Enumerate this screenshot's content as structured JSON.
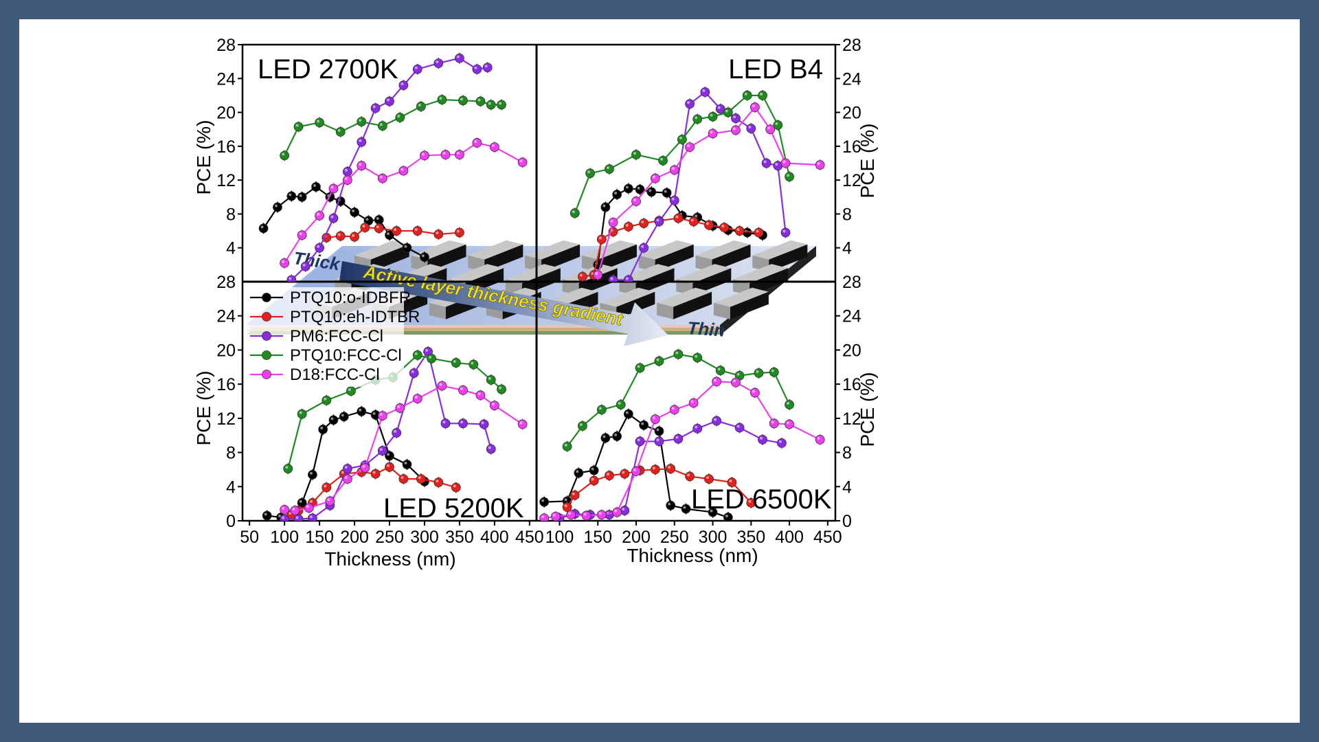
{
  "chart_data": {
    "type": "line",
    "legend": {
      "placement": "top-left of lower-left panel",
      "entries": [
        {
          "label": "PTQ10:o-IDBFR",
          "color": "#000000"
        },
        {
          "label": "PTQ10:eh-IDTBR",
          "color": "#e3201b"
        },
        {
          "label": "PM6:FCC-Cl",
          "color": "#8a2be2"
        },
        {
          "label": "PTQ10:FCC-Cl",
          "color": "#1f8a1f"
        },
        {
          "label": "D18:FCC-Cl",
          "color": "#ef3ef0"
        }
      ]
    },
    "ylabel": "PCE (%)",
    "xlabel": "Thickness (nm)",
    "y_ticks": [
      "0",
      "4",
      "8",
      "12",
      "16",
      "20",
      "24",
      "28"
    ],
    "x_ticks": [
      "50",
      "100",
      "150",
      "200",
      "250",
      "300",
      "350",
      "400",
      "450"
    ],
    "ylim": [
      0,
      28
    ],
    "xlim_left": [
      40,
      460
    ],
    "xlim_right": [
      70,
      460
    ],
    "panels": [
      {
        "id": "tl",
        "title": "LED 2700K",
        "series": [
          {
            "name": "PTQ10:o-IDBFR",
            "x": [
              70,
              90,
              110,
              125,
              145,
              165,
              180,
              200,
              220,
              235,
              250,
              275,
              300
            ],
            "y": [
              6.3,
              8.8,
              10.1,
              10.0,
              11.2,
              10.0,
              9.5,
              8.2,
              7.2,
              7.3,
              5.5,
              4.0,
              2.9
            ]
          },
          {
            "name": "PTQ10:eh-IDTBR",
            "x": [
              160,
              180,
              200,
              215,
              235,
              260,
              290,
              320,
              350
            ],
            "y": [
              5.2,
              5.4,
              5.3,
              6.4,
              6.3,
              6.0,
              6.0,
              5.6,
              5.8
            ]
          },
          {
            "name": "PM6:FCC-Cl",
            "x": [
              110,
              130,
              150,
              170,
              190,
              210,
              230,
              250,
              270,
              290,
              320,
              350,
              375,
              390
            ],
            "y": [
              0.2,
              1.8,
              4.0,
              7.5,
              13.0,
              16.5,
              20.5,
              21.3,
              23.2,
              25.1,
              25.8,
              26.4,
              25.1,
              25.3
            ]
          },
          {
            "name": "PTQ10:FCC-Cl",
            "x": [
              100,
              120,
              150,
              180,
              210,
              240,
              265,
              295,
              325,
              355,
              380,
              395,
              410
            ],
            "y": [
              14.9,
              18.3,
              18.8,
              17.7,
              18.9,
              18.4,
              19.4,
              20.7,
              21.5,
              21.4,
              21.3,
              20.9,
              20.9
            ]
          },
          {
            "name": "D18:FCC-Cl",
            "x": [
              100,
              125,
              150,
              170,
              190,
              210,
              240,
              270,
              300,
              330,
              350,
              375,
              400,
              440
            ],
            "y": [
              2.2,
              5.5,
              7.8,
              11.0,
              12.0,
              13.7,
              12.2,
              13.1,
              14.9,
              15.0,
              15.0,
              16.4,
              15.9,
              14.1
            ]
          }
        ]
      },
      {
        "id": "tr",
        "title": "LED B4",
        "series": [
          {
            "name": "PTQ10:o-IDBFR",
            "x": [
              150,
              160,
              175,
              190,
              205,
              220,
              240,
              260,
              280,
              300,
              320,
              345,
              365
            ],
            "y": [
              2.0,
              8.8,
              10.3,
              11.0,
              10.9,
              10.6,
              10.5,
              7.8,
              7.6,
              6.6,
              6.1,
              5.8,
              5.5
            ]
          },
          {
            "name": "PTQ10:eh-IDTBR",
            "x": [
              130,
              145,
              155,
              170,
              190,
              210,
              230,
              255,
              275,
              295,
              315,
              335,
              360
            ],
            "y": [
              0.6,
              0.8,
              5.0,
              5.9,
              6.5,
              6.9,
              7.2,
              7.5,
              7.1,
              6.7,
              6.4,
              6.0,
              5.8
            ]
          },
          {
            "name": "PM6:FCC-Cl",
            "x": [
              170,
              190,
              210,
              230,
              250,
              270,
              290,
              310,
              330,
              350,
              370,
              385,
              395
            ],
            "y": [
              0.2,
              0.2,
              4.0,
              7.1,
              9.6,
              21.0,
              22.4,
              20.4,
              19.3,
              18.1,
              14.0,
              13.7,
              5.8
            ]
          },
          {
            "name": "PTQ10:FCC-Cl",
            "x": [
              120,
              140,
              165,
              200,
              235,
              260,
              280,
              300,
              320,
              345,
              365,
              385,
              400
            ],
            "y": [
              8.1,
              12.8,
              13.3,
              15.0,
              14.3,
              16.8,
              19.2,
              19.5,
              20.0,
              22.0,
              22.0,
              18.5,
              12.4
            ]
          },
          {
            "name": "D18:FCC-Cl",
            "x": [
              150,
              170,
              200,
              225,
              250,
              270,
              300,
              330,
              355,
              375,
              395,
              440
            ],
            "y": [
              0.8,
              7.0,
              9.5,
              12.2,
              13.2,
              15.9,
              17.5,
              17.9,
              20.6,
              18.0,
              14.0,
              13.8
            ]
          }
        ]
      },
      {
        "id": "bl",
        "title": "LED 5200K",
        "series": [
          {
            "name": "PTQ10:o-IDBFR",
            "x": [
              75,
              95,
              110,
              125,
              140,
              155,
              170,
              185,
              210,
              230,
              250,
              275,
              300
            ],
            "y": [
              0.6,
              0.4,
              0.8,
              2.1,
              5.4,
              10.7,
              11.8,
              12.2,
              12.8,
              12.4,
              7.6,
              6.6,
              4.6
            ]
          },
          {
            "name": "PTQ10:eh-IDTBR",
            "x": [
              110,
              120,
              140,
              160,
              185,
              210,
              230,
              250,
              270,
              295,
              320,
              345
            ],
            "y": [
              0.7,
              1.2,
              2.1,
              3.9,
              5.5,
              5.7,
              5.5,
              6.3,
              4.9,
              4.9,
              4.5,
              3.9
            ]
          },
          {
            "name": "PM6:FCC-Cl",
            "x": [
              100,
              120,
              140,
              165,
              190,
              215,
              240,
              260,
              285,
              305,
              330,
              355,
              385,
              395
            ],
            "y": [
              0.2,
              0.2,
              0.3,
              1.8,
              6.1,
              6.5,
              8.2,
              10.3,
              17.3,
              19.8,
              11.4,
              11.4,
              11.3,
              8.4
            ]
          },
          {
            "name": "PTQ10:FCC-Cl",
            "x": [
              105,
              125,
              160,
              195,
              230,
              255,
              290,
              310,
              345,
              370,
              395,
              410
            ],
            "y": [
              6.1,
              12.5,
              14.1,
              15.2,
              16.5,
              16.8,
              19.4,
              19.0,
              18.5,
              18.3,
              16.5,
              15.4
            ]
          },
          {
            "name": "D18:FCC-Cl",
            "x": [
              100,
              115,
              135,
              165,
              190,
              215,
              240,
              265,
              290,
              325,
              355,
              380,
              400,
              440
            ],
            "y": [
              1.3,
              1.2,
              1.5,
              2.3,
              4.9,
              6.2,
              12.3,
              13.2,
              14.3,
              15.8,
              15.3,
              14.7,
              13.5,
              11.3
            ]
          }
        ]
      },
      {
        "id": "br",
        "title": "LED 6500K",
        "series": [
          {
            "name": "PTQ10:o-IDBFR",
            "x": [
              80,
              110,
              125,
              145,
              160,
              175,
              190,
              210,
              230,
              245,
              265,
              300,
              320
            ],
            "y": [
              2.2,
              2.3,
              5.6,
              5.9,
              9.7,
              9.9,
              12.5,
              11.2,
              10.5,
              1.8,
              1.4,
              1.0,
              0.4
            ]
          },
          {
            "name": "PTQ10:eh-IDTBR",
            "x": [
              110,
              120,
              145,
              165,
              185,
              205,
              225,
              245,
              270,
              295,
              325,
              350
            ],
            "y": [
              1.6,
              3.0,
              4.7,
              5.3,
              5.5,
              5.9,
              6.0,
              6.1,
              5.2,
              4.9,
              4.5,
              2.1
            ]
          },
          {
            "name": "PM6:FCC-Cl",
            "x": [
              100,
              120,
              140,
              165,
              185,
              205,
              230,
              255,
              280,
              305,
              335,
              365,
              390
            ],
            "y": [
              0.3,
              0.8,
              0.7,
              0.7,
              1.2,
              9.3,
              9.3,
              9.6,
              10.8,
              11.7,
              10.9,
              9.5,
              9.1
            ]
          },
          {
            "name": "PTQ10:FCC-Cl",
            "x": [
              110,
              130,
              155,
              180,
              205,
              230,
              255,
              280,
              310,
              335,
              360,
              380,
              400
            ],
            "y": [
              8.7,
              11.1,
              13.0,
              13.6,
              17.9,
              18.7,
              19.5,
              19.1,
              17.6,
              17.0,
              17.3,
              17.4,
              13.6
            ]
          },
          {
            "name": "D18:FCC-Cl",
            "x": [
              80,
              95,
              115,
              135,
              155,
              175,
              200,
              225,
              250,
              275,
              305,
              330,
              355,
              380,
              400,
              440
            ],
            "y": [
              0.3,
              0.5,
              0.7,
              0.6,
              0.7,
              1.0,
              5.8,
              11.9,
              13.0,
              13.8,
              16.3,
              16.2,
              15.0,
              11.4,
              11.3,
              9.5
            ]
          }
        ]
      }
    ],
    "inset": {
      "label_thick": "Thick",
      "label_gradient": "Active layer thickness gradient",
      "label_thin": "Thin"
    }
  }
}
